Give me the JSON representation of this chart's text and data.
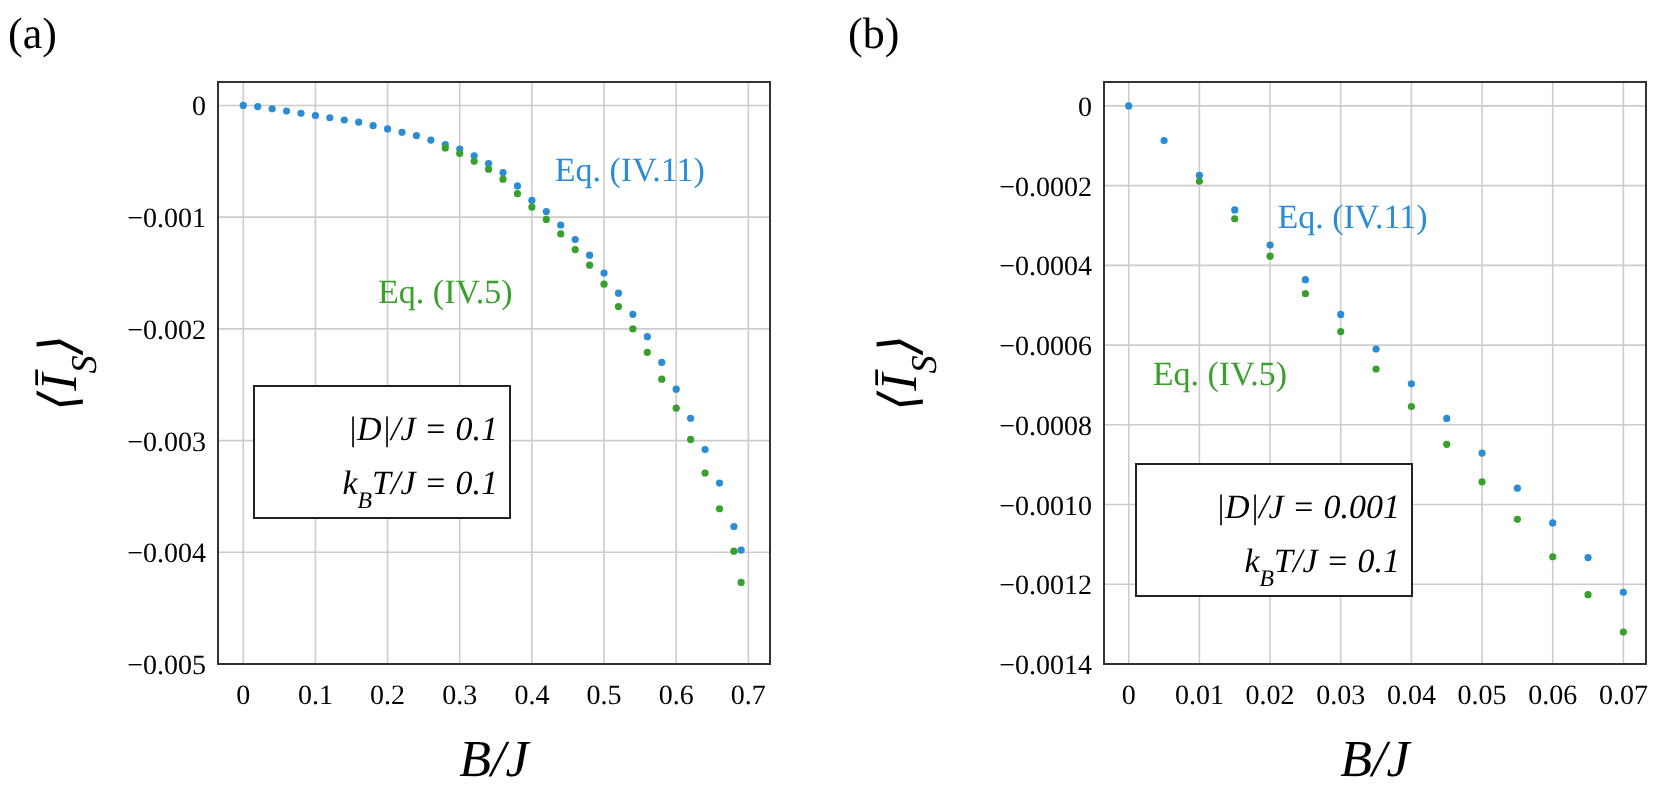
{
  "chart_data": [
    {
      "type": "scatter",
      "title": "(a)",
      "xlabel": "B/J",
      "ylabel": "⟨Ī$_{S}$⟩",
      "marker": "circle",
      "grid": true,
      "xlim": [
        -0.035,
        0.73
      ],
      "ylim": [
        -0.005,
        0.00021
      ],
      "xticks": [
        0,
        0.1,
        0.2,
        0.3,
        0.4,
        0.5,
        0.6,
        0.7
      ],
      "yticks": [
        0,
        {
          "value": -0.001,
          "label": "−0.001"
        },
        {
          "value": -0.002,
          "label": "−0.002"
        },
        {
          "value": -0.003,
          "label": "−0.003"
        },
        {
          "value": -0.004,
          "label": "−0.004"
        },
        {
          "value": -0.005,
          "label": "−0.005"
        }
      ],
      "annotations": [
        "|D|/J = 0.1",
        "k$_{B}$T/J = 0.1"
      ],
      "x": [
        0,
        0.02,
        0.04,
        0.06,
        0.08,
        0.1,
        0.12,
        0.14,
        0.16,
        0.18,
        0.2,
        0.22,
        0.24,
        0.26,
        0.28,
        0.3,
        0.32,
        0.34,
        0.36,
        0.38,
        0.4,
        0.42,
        0.44,
        0.46,
        0.48,
        0.5,
        0.52,
        0.54,
        0.56,
        0.58,
        0.6,
        0.62,
        0.64,
        0.66,
        0.68,
        0.69
      ],
      "series": [
        {
          "name": "Eq. (IV.11)",
          "color": "#2b8cd6",
          "values": [
            0,
            -1e-05,
            -3e-05,
            -5e-05,
            -7e-05,
            -9e-05,
            -0.00011,
            -0.00013,
            -0.00015,
            -0.00018,
            -0.00021,
            -0.00024,
            -0.00027,
            -0.00031,
            -0.00035,
            -0.00039,
            -0.00045,
            -0.00052,
            -0.0006,
            -0.00072,
            -0.00085,
            -0.00095,
            -0.00107,
            -0.0012,
            -0.00134,
            -0.0015,
            -0.00168,
            -0.00187,
            -0.00207,
            -0.0023,
            -0.00254,
            -0.0028,
            -0.00308,
            -0.00338,
            -0.00377,
            -0.00398
          ]
        },
        {
          "name": "Eq. (IV.5)",
          "color": "#3aa02c",
          "values": [
            null,
            null,
            null,
            null,
            null,
            null,
            null,
            null,
            null,
            null,
            null,
            null,
            null,
            null,
            -0.00038,
            -0.00043,
            -0.0005,
            -0.00057,
            -0.00066,
            -0.00079,
            -0.00091,
            -0.00102,
            -0.00115,
            -0.00129,
            -0.00143,
            -0.0016,
            -0.0018,
            -0.002,
            -0.00221,
            -0.00245,
            -0.00271,
            -0.00299,
            -0.00329,
            -0.00361,
            -0.00399,
            -0.00427
          ]
        }
      ]
    },
    {
      "type": "scatter",
      "title": "(b)",
      "xlabel": "B/J",
      "ylabel": "⟨Ī$_{S}$⟩",
      "marker": "circle",
      "grid": true,
      "xlim": [
        -0.0035,
        0.0732
      ],
      "ylim": [
        -0.0014,
        6e-05
      ],
      "xticks": [
        0,
        0.01,
        0.02,
        0.03,
        0.04,
        0.05,
        0.06,
        0.07
      ],
      "yticks": [
        0,
        {
          "value": -0.0002,
          "label": "−0.0002"
        },
        {
          "value": -0.0004,
          "label": "−0.0004"
        },
        {
          "value": -0.0006,
          "label": "−0.0006"
        },
        {
          "value": -0.0008,
          "label": "−0.0008"
        },
        {
          "value": -0.001,
          "label": "−0.0010"
        },
        {
          "value": -0.0012,
          "label": "−0.0012"
        },
        {
          "value": -0.0014,
          "label": "−0.0014"
        }
      ],
      "annotations": [
        "|D|/J = 0.001",
        "k$_{B}$T/J = 0.1"
      ],
      "x": [
        0,
        0.005,
        0.01,
        0.015,
        0.02,
        0.025,
        0.03,
        0.035,
        0.04,
        0.045,
        0.05,
        0.055,
        0.06,
        0.065,
        0.07
      ],
      "series": [
        {
          "name": "Eq. (IV.11)",
          "color": "#2b8cd6",
          "values": [
            0,
            -8.7e-05,
            -0.000174,
            -0.000261,
            -0.000349,
            -0.000436,
            -0.000523,
            -0.00061,
            -0.000697,
            -0.000784,
            -0.000871,
            -0.000959,
            -0.001046,
            -0.001133,
            -0.00122
          ]
        },
        {
          "name": "Eq. (IV.5)",
          "color": "#3aa02c",
          "values": [
            null,
            null,
            -0.000189,
            -0.000283,
            -0.000377,
            -0.000471,
            -0.000566,
            -0.00066,
            -0.000754,
            -0.000849,
            -0.000943,
            -0.001037,
            -0.001131,
            -0.001226,
            -0.00132
          ]
        }
      ]
    }
  ]
}
